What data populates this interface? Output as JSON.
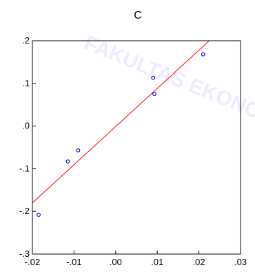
{
  "watermark": {
    "text": "FAKULTAS EKONOMI",
    "color": "#6a5cf0"
  },
  "chart_data": {
    "type": "scatter",
    "title": "C",
    "xlabel": "",
    "ylabel": "",
    "xlim": [
      -0.02,
      0.03
    ],
    "ylim": [
      -0.3,
      0.2
    ],
    "xticks": [
      -0.02,
      -0.01,
      0.0,
      0.01,
      0.02,
      0.03
    ],
    "xtick_labels": [
      "-.02",
      "-.01",
      ".00",
      ".01",
      ".02",
      ".03"
    ],
    "yticks": [
      -0.3,
      -0.2,
      -0.1,
      0.0,
      0.1,
      0.2
    ],
    "ytick_labels": [
      "-.3",
      "-.2",
      "-.1",
      ".0",
      ".1",
      ".2"
    ],
    "grid": false,
    "series": [
      {
        "values": [
          {
            "x": -0.0185,
            "y": -0.208
          },
          {
            "x": -0.0115,
            "y": -0.083
          },
          {
            "x": -0.009,
            "y": -0.057
          },
          {
            "x": 0.009,
            "y": 0.113
          },
          {
            "x": 0.0093,
            "y": 0.075
          },
          {
            "x": 0.021,
            "y": 0.168
          }
        ],
        "color": "#0000cc"
      }
    ],
    "fit_line": {
      "x": [
        -0.02,
        0.0225
      ],
      "y": [
        -0.18,
        0.2
      ],
      "color": "#ff0000"
    }
  }
}
